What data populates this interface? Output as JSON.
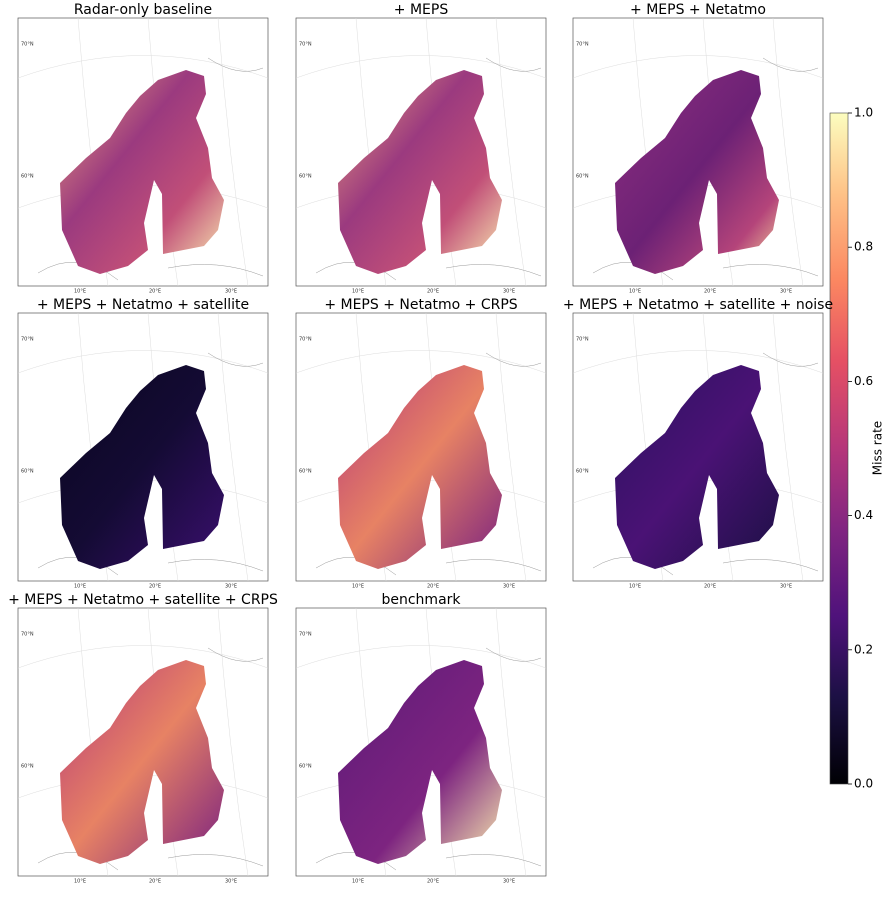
{
  "panels": [
    {
      "title": "Radar-only baseline"
    },
    {
      "title": "+ MEPS"
    },
    {
      "title": "+ MEPS + Netatmo"
    },
    {
      "title": "+ MEPS + Netatmo + satellite"
    },
    {
      "title": "+ MEPS + Netatmo + CRPS"
    },
    {
      "title": "+ MEPS + Netatmo + satellite + noise"
    },
    {
      "title": "+ MEPS + Netatmo + satellite + CRPS"
    },
    {
      "title": "benchmark"
    }
  ],
  "map_labels": {
    "lat": [
      "70°N",
      "60°N"
    ],
    "lon": [
      "10°E",
      "20°E",
      "30°E"
    ]
  },
  "colorbar": {
    "label": "Miss rate",
    "lim": [
      0,
      1
    ],
    "ticks": [
      {
        "value": 0,
        "label": "0.0"
      },
      {
        "value": 0.2,
        "label": "0.2"
      },
      {
        "value": 0.4,
        "label": "0.4"
      },
      {
        "value": 0.6,
        "label": "0.6"
      },
      {
        "value": 0.8,
        "label": "0.8"
      },
      {
        "value": 1,
        "label": "1.0"
      }
    ]
  }
}
